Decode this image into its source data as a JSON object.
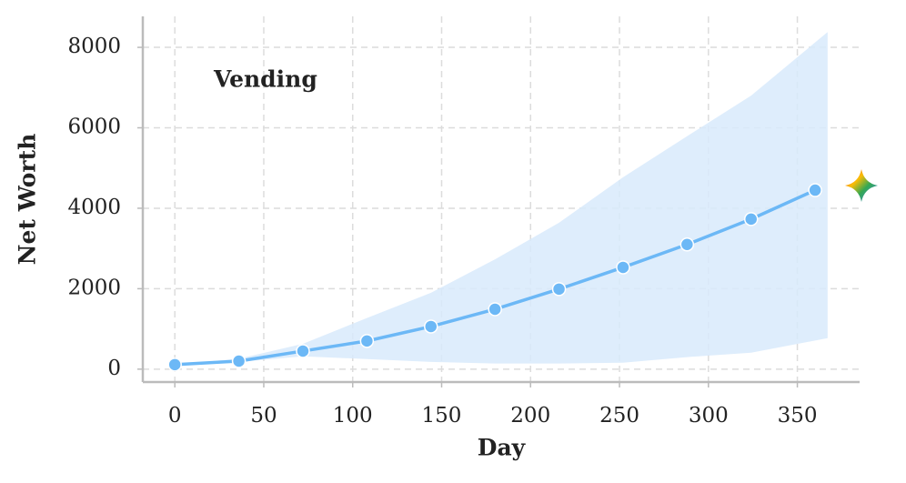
{
  "chart_data": {
    "type": "line",
    "xlabel": "Day",
    "ylabel": "Net Worth",
    "annotation": "Vending",
    "xlim": [
      -18,
      385
    ],
    "ylim": [
      -320,
      8770
    ],
    "xticks": [
      0,
      50,
      100,
      150,
      200,
      250,
      300,
      350
    ],
    "yticks": [
      0,
      2000,
      4000,
      6000,
      8000
    ],
    "grid": true,
    "series": [
      {
        "color": "#6cb8f6",
        "x": [
          0,
          36,
          72,
          108,
          144,
          180,
          216,
          252,
          288,
          324,
          360
        ],
        "values": [
          113,
          200,
          450,
          700,
          1060,
          1490,
          1990,
          2530,
          3100,
          3730,
          4450
        ]
      }
    ],
    "band": {
      "color": "#d8eafc",
      "x": [
        0,
        36,
        72,
        108,
        144,
        180,
        216,
        252,
        288,
        324,
        367
      ],
      "lower": [
        113,
        180,
        320,
        250,
        180,
        140,
        140,
        160,
        300,
        410,
        770
      ],
      "upper": [
        113,
        260,
        630,
        1270,
        1900,
        2730,
        3640,
        4770,
        5790,
        6800,
        8380
      ]
    }
  }
}
